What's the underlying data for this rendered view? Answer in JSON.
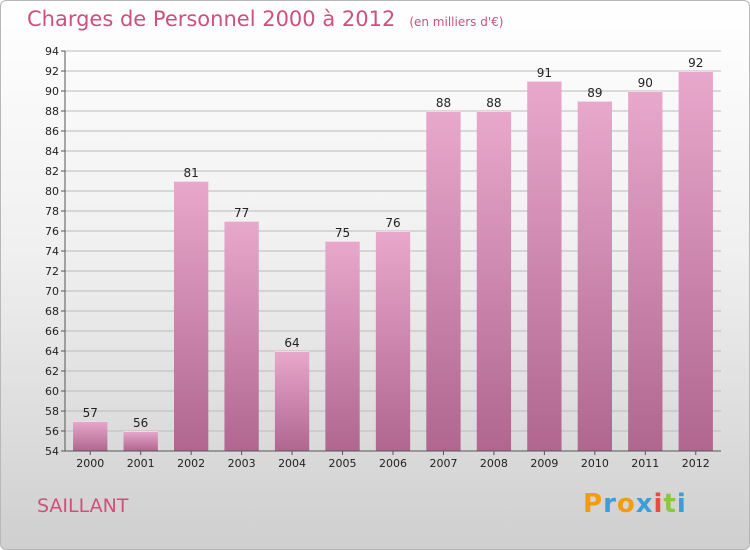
{
  "header": {
    "title": "Charges de Personnel 2000 à 2012",
    "unit": "(en milliers d'€)"
  },
  "footer": {
    "commune": "SAILLANT",
    "logo_letters": [
      "P",
      "r",
      "o",
      "x",
      "i",
      "t",
      "i"
    ],
    "logo_colors": [
      "#f39c12",
      "#3a9fd8",
      "#f39c12",
      "#3a9fd8",
      "#e74c3c",
      "#8dc63f",
      "#3a9fd8"
    ]
  },
  "colors": {
    "bar_top": "#e8a8cc",
    "bar_bottom": "#b0668f",
    "grid": "#bbbbbb"
  },
  "chart_data": {
    "type": "bar",
    "title": "Charges de Personnel 2000 à 2012",
    "categories": [
      "2000",
      "2001",
      "2002",
      "2003",
      "2004",
      "2005",
      "2006",
      "2007",
      "2008",
      "2009",
      "2010",
      "2011",
      "2012"
    ],
    "values": [
      57,
      56,
      81,
      77,
      64,
      75,
      76,
      88,
      88,
      91,
      89,
      90,
      92
    ],
    "ylim": [
      54,
      94
    ],
    "yticks": [
      54,
      56,
      58,
      60,
      62,
      64,
      66,
      68,
      70,
      72,
      74,
      76,
      78,
      80,
      82,
      84,
      86,
      88,
      90,
      92,
      94
    ],
    "grid": true
  }
}
